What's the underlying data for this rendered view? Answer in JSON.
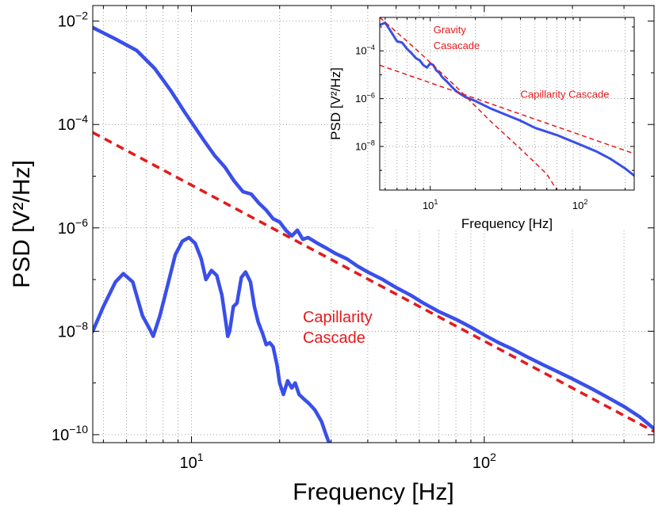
{
  "chart_data": [
    {
      "type": "line",
      "scale": {
        "x": "log",
        "y": "log"
      },
      "grid": true,
      "xlabel": "Frequency [Hz]",
      "ylabel": "PSD [V²/Hz]",
      "xlim": [
        4.6,
        380
      ],
      "ylim": [
        7e-11,
        0.02
      ],
      "x_ticks": [
        {
          "value": 10,
          "label": "10",
          "sup": "1"
        },
        {
          "value": 100,
          "label": "10",
          "sup": "2"
        }
      ],
      "y_ticks": [
        {
          "value": 1e-10,
          "label": "10",
          "sup": "−10"
        },
        {
          "value": 1e-08,
          "label": "10",
          "sup": "−8"
        },
        {
          "value": 1e-06,
          "label": "10",
          "sup": "−6"
        },
        {
          "value": 0.0001,
          "label": "10",
          "sup": "−4"
        },
        {
          "value": 0.01,
          "label": "10",
          "sup": "−2"
        }
      ],
      "annotations": [
        {
          "text": "Capillarity",
          "x": 24,
          "y": 1.5e-08
        },
        {
          "text": "Cascade",
          "x": 24,
          "y": 6e-09
        }
      ],
      "series": [
        {
          "style": "solid",
          "color": "#3a4fe8",
          "points": [
            [
              4.6,
              0.0075
            ],
            [
              5.5,
              0.0045
            ],
            [
              6.5,
              0.0027
            ],
            [
              7.5,
              0.0012
            ],
            [
              8.5,
              0.00045
            ],
            [
              9.5,
              0.00017
            ],
            [
              11,
              5e-05
            ],
            [
              12,
              2.5e-05
            ],
            [
              13,
              1.5e-05
            ],
            [
              14,
              8e-06
            ],
            [
              15,
              5e-06
            ],
            [
              16,
              4.5e-06
            ],
            [
              17,
              3e-06
            ],
            [
              18,
              2.2e-06
            ],
            [
              19,
              1.5e-06
            ],
            [
              20,
              1.3e-06
            ],
            [
              21,
              9e-07
            ],
            [
              22,
              7e-07
            ],
            [
              23,
              9e-07
            ],
            [
              24,
              6e-07
            ],
            [
              25,
              6.5e-07
            ],
            [
              27,
              5e-07
            ],
            [
              29,
              4e-07
            ],
            [
              31,
              3.2e-07
            ],
            [
              34,
              2.5e-07
            ],
            [
              37,
              1.8e-07
            ],
            [
              40,
              1.4e-07
            ],
            [
              45,
              1e-07
            ],
            [
              50,
              7e-08
            ],
            [
              56,
              5e-08
            ],
            [
              62,
              3.5e-08
            ],
            [
              70,
              2.4e-08
            ],
            [
              80,
              1.7e-08
            ],
            [
              90,
              1.2e-08
            ],
            [
              100,
              8.5e-09
            ],
            [
              112,
              6e-09
            ],
            [
              125,
              4.5e-09
            ],
            [
              140,
              3.2e-09
            ],
            [
              160,
              2.2e-09
            ],
            [
              180,
              1.6e-09
            ],
            [
              200,
              1.2e-09
            ],
            [
              230,
              8e-10
            ],
            [
              260,
              5.5e-10
            ],
            [
              300,
              3.5e-10
            ],
            [
              340,
              2.2e-10
            ],
            [
              380,
              1.3e-10
            ]
          ]
        },
        {
          "style": "dashed",
          "color": "#e41a1c",
          "points": [
            [
              4.6,
              7e-05
            ],
            [
              380,
              1.15e-10
            ]
          ]
        },
        {
          "style": "solid",
          "color": "#3a4fe8",
          "points": [
            [
              4.6,
              1e-08
            ],
            [
              5.0,
              3e-08
            ],
            [
              5.5,
              9e-08
            ],
            [
              5.85,
              1.3e-07
            ],
            [
              6.3,
              9e-08
            ],
            [
              6.8,
              2e-08
            ],
            [
              7.2,
              1.1e-08
            ],
            [
              7.4,
              8e-09
            ],
            [
              7.8,
              2e-08
            ],
            [
              8.3,
              8e-08
            ],
            [
              8.8,
              3e-07
            ],
            [
              9.3,
              5.5e-07
            ],
            [
              9.8,
              6.5e-07
            ],
            [
              10.3,
              5e-07
            ],
            [
              10.8,
              2.5e-07
            ],
            [
              11.2,
              1e-07
            ],
            [
              11.7,
              1.5e-07
            ],
            [
              12.2,
              1.2e-07
            ],
            [
              12.7,
              5e-08
            ],
            [
              13.1,
              1.5e-08
            ],
            [
              13.3,
              8e-09
            ],
            [
              13.5,
              1e-08
            ],
            [
              13.9,
              3e-08
            ],
            [
              14.3,
              3.5e-08
            ],
            [
              14.8,
              1.1e-07
            ],
            [
              15.3,
              1.4e-07
            ],
            [
              15.9,
              9e-08
            ],
            [
              16.4,
              3e-08
            ],
            [
              16.9,
              1.5e-08
            ],
            [
              17.5,
              9e-09
            ],
            [
              18.0,
              5.5e-09
            ],
            [
              18.5,
              6e-09
            ],
            [
              19.0,
              5e-09
            ],
            [
              19.6,
              2.2e-09
            ],
            [
              20.0,
              1e-09
            ],
            [
              20.6,
              6e-10
            ],
            [
              21.3,
              1.1e-09
            ],
            [
              22.0,
              8e-10
            ],
            [
              22.6,
              1e-09
            ],
            [
              23.3,
              6e-10
            ],
            [
              24.1,
              5e-10
            ],
            [
              25.2,
              4e-10
            ],
            [
              26.4,
              3e-10
            ],
            [
              27.8,
              1.8e-10
            ],
            [
              28.8,
              1e-10
            ],
            [
              29.5,
              7e-11
            ]
          ]
        }
      ]
    },
    {
      "type": "line",
      "scale": {
        "x": "log",
        "y": "log"
      },
      "grid": true,
      "xlabel": "Frequency [Hz]",
      "ylabel": "PSD [V²/Hz]",
      "xlim": [
        4.6,
        230
      ],
      "ylim": [
        1.5e-10,
        0.0025
      ],
      "x_ticks": [
        {
          "value": 10,
          "label": "10",
          "sup": "1"
        },
        {
          "value": 100,
          "label": "10",
          "sup": "2"
        }
      ],
      "y_ticks": [
        {
          "value": 1e-08,
          "label": "10",
          "sup": "−8"
        },
        {
          "value": 1e-06,
          "label": "10",
          "sup": "−6"
        },
        {
          "value": 0.0001,
          "label": "10",
          "sup": "−4"
        }
      ],
      "annotations": [
        {
          "text": "Gravity",
          "x": 10.5,
          "y": 0.00055
        },
        {
          "text": "Casacade",
          "x": 10.5,
          "y": 0.00012
        },
        {
          "text": "Capillarity Cascade",
          "x": 40,
          "y": 1.1e-06
        }
      ],
      "series": [
        {
          "style": "solid",
          "color": "#3a4fe8",
          "points": [
            [
              4.6,
              0.0012
            ],
            [
              5.0,
              0.0015
            ],
            [
              5.5,
              0.0006
            ],
            [
              6.0,
              0.00025
            ],
            [
              6.5,
              0.00022
            ],
            [
              7.0,
              0.00012
            ],
            [
              7.5,
              8e-05
            ],
            [
              8.0,
              5e-05
            ],
            [
              8.5,
              4e-05
            ],
            [
              9.0,
              2.5e-05
            ],
            [
              9.5,
              2e-05
            ],
            [
              10.0,
              3e-05
            ],
            [
              10.5,
              2.5e-05
            ],
            [
              11.0,
              1.5e-05
            ],
            [
              11.5,
              1.2e-05
            ],
            [
              12.0,
              8e-06
            ],
            [
              13.0,
              5e-06
            ],
            [
              14.0,
              3e-06
            ],
            [
              15.0,
              2e-06
            ],
            [
              17.0,
              1.2e-06
            ],
            [
              20.0,
              8e-07
            ],
            [
              25.0,
              4e-07
            ],
            [
              30.0,
              2.5e-07
            ],
            [
              40.0,
              1.2e-07
            ],
            [
              50.0,
              6e-08
            ],
            [
              70.0,
              3e-08
            ],
            [
              100.0,
              1.2e-08
            ],
            [
              130.0,
              6e-09
            ],
            [
              160.0,
              3e-09
            ],
            [
              200.0,
              1.2e-09
            ],
            [
              230.0,
              6e-10
            ]
          ]
        },
        {
          "style": "dashed",
          "color": "#e41a1c",
          "points": [
            [
              4.6,
              0.0025
            ],
            [
              8,
              0.00012
            ],
            [
              15,
              3e-06
            ],
            [
              25,
              1.2e-07
            ],
            [
              40,
              8e-09
            ],
            [
              60,
              7e-10
            ],
            [
              70,
              1.5e-10
            ]
          ]
        },
        {
          "style": "dashed",
          "color": "#e41a1c",
          "points": [
            [
              4.6,
              2.5e-05
            ],
            [
              230,
              5e-09
            ]
          ]
        }
      ]
    }
  ]
}
